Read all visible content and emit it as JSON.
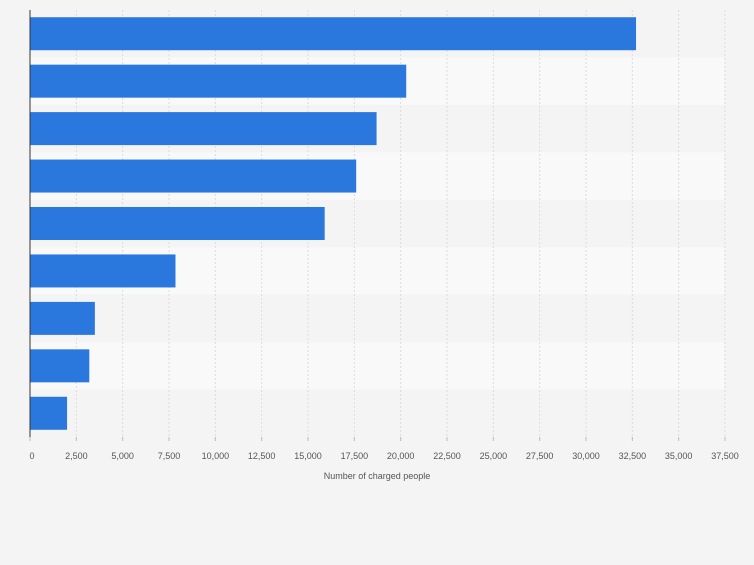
{
  "chart_data": {
    "type": "bar",
    "orientation": "horizontal",
    "title": "",
    "xlabel": "Number of charged people",
    "ylabel": "",
    "xlim": [
      0,
      37500
    ],
    "xticks": [
      0,
      2500,
      5000,
      7500,
      10000,
      12500,
      15000,
      17500,
      20000,
      22500,
      25000,
      27500,
      30000,
      32500,
      35000,
      37500
    ],
    "xtick_labels": [
      "0",
      "2,500",
      "5,000",
      "7,500",
      "10,000",
      "12,500",
      "15,000",
      "17,500",
      "20,000",
      "22,500",
      "25,000",
      "27,500",
      "30,000",
      "32,500",
      "35,000",
      "37,500"
    ],
    "categories": [
      "",
      "",
      "",
      "",
      "",
      "",
      "",
      "",
      ""
    ],
    "values": [
      32700,
      20300,
      18700,
      17600,
      15900,
      7850,
      3500,
      3200,
      2000
    ],
    "grid": true,
    "legend": "none",
    "colors": {
      "bar": "#2a78de",
      "band_a": "#f4f4f4",
      "band_b": "#f9f9f9",
      "grid": "#dcdcdc",
      "axis": "#333333",
      "tick_text": "#555555",
      "background": "#f4f4f4"
    }
  }
}
